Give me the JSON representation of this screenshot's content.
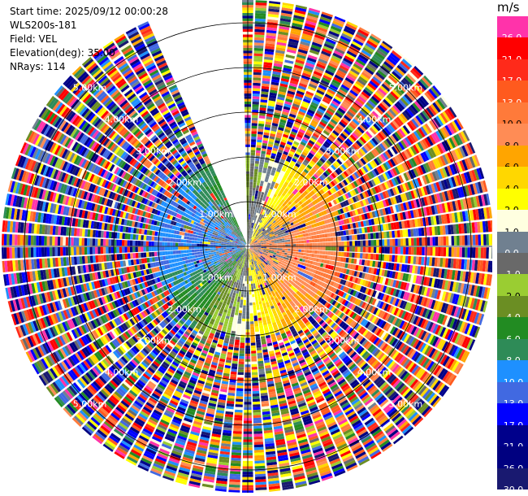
{
  "header": {
    "start_time": "Start time: 2025/09/12 00:00:28",
    "instrument": "WLS200s-181",
    "field": "Field: VEL",
    "elevation": "Elevation(deg): 35.00",
    "nrays": "NRays: 114"
  },
  "colorbar": {
    "unit": "m/s",
    "bins": [
      {
        "label": "26.0",
        "color": "#ff33aa"
      },
      {
        "label": "21.0",
        "color": "#ff0000"
      },
      {
        "label": "17.0",
        "color": "#ff2a1a"
      },
      {
        "label": "13.0",
        "color": "#ff5a1e"
      },
      {
        "label": "10.0",
        "color": "#ff7a3a"
      },
      {
        "label": "8.0",
        "color": "#ff8c55"
      },
      {
        "label": "6.0",
        "color": "#ffa500"
      },
      {
        "label": "4.0",
        "color": "#ffd700"
      },
      {
        "label": "2.0",
        "color": "#ffff00"
      },
      {
        "label": "1.0",
        "color": "#ffffe0"
      },
      {
        "label": "0.0",
        "color": "#708090"
      },
      {
        "label": "-1.0",
        "color": "#696969"
      },
      {
        "label": "-2.0",
        "color": "#9acd32"
      },
      {
        "label": "-4.0",
        "color": "#6b8e23"
      },
      {
        "label": "-6.0",
        "color": "#228b22"
      },
      {
        "label": "-8.0",
        "color": "#2e8b57"
      },
      {
        "label": "-10.0",
        "color": "#1e90ff"
      },
      {
        "label": "-13.0",
        "color": "#4169e1"
      },
      {
        "label": "-17.0",
        "color": "#0000ff"
      },
      {
        "label": "-21.0",
        "color": "#00008b"
      },
      {
        "label": "-26.0",
        "color": "#000080"
      },
      {
        "label": "-30.0",
        "color": "#191970"
      }
    ]
  },
  "chart_data": {
    "type": "heatmap",
    "subtype": "ppi-polar",
    "field": "VEL",
    "units": "m/s",
    "elevation_deg": 35.0,
    "n_rays": 114,
    "range_rings_km": [
      1.0,
      2.0,
      3.0,
      4.0,
      5.0
    ],
    "ring_labels": [
      "1.00km",
      "2.00km",
      "3.00km",
      "4.00km",
      "5.00km"
    ],
    "max_range_km": 5.45,
    "missing_sector_azimuth_deg": [
      337,
      358
    ],
    "dominant_pattern": [
      {
        "sector": "north-east",
        "value_range": [
          1.0,
          8.0
        ],
        "description": "positive (orange/yellow) near field"
      },
      {
        "sector": "south-east",
        "value_range": [
          4.0,
          13.0
        ],
        "description": "positive (orange/salmon)"
      },
      {
        "sector": "north-west",
        "value_range": [
          -8.0,
          2.0
        ],
        "description": "negative (green) near field"
      },
      {
        "sector": "south-west",
        "value_range": [
          -13.0,
          -2.0
        ],
        "description": "negative (blue) near field"
      },
      {
        "sector": "outer rings",
        "value_range": [
          -30.0,
          26.0
        ],
        "description": "noisy, all classes"
      }
    ]
  }
}
